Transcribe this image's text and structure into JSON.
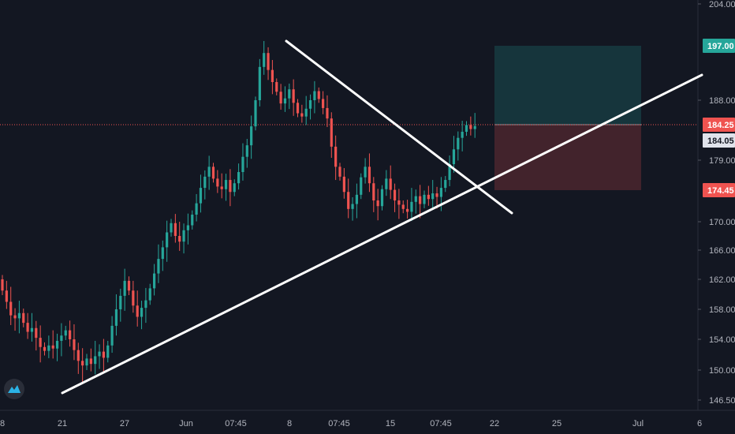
{
  "chart_data": {
    "type": "candlestick",
    "title": "",
    "colors": {
      "background": "#131722",
      "up": "#26a69a",
      "down": "#ef5350",
      "trendline": "#ffffff",
      "price_line": "#ef5350",
      "target_zone": "rgba(38,166,154,0.22)",
      "stop_zone": "rgba(239,83,80,0.22)",
      "axis_text": "#b2b5be"
    },
    "y_axis": {
      "position": "right",
      "range": [
        145,
        205
      ],
      "tick_labels": [
        "204.00",
        "188.00",
        "179.00",
        "170.00",
        "166.00",
        "162.00",
        "158.00",
        "154.00",
        "150.00",
        "146.50"
      ],
      "tick_values": [
        204,
        188,
        179,
        170,
        166,
        162,
        158,
        154,
        150,
        146.5
      ]
    },
    "x_axis": {
      "tick_labels": [
        "8",
        "21",
        "27",
        "Jun",
        "07:45",
        "8",
        "07:45",
        "15",
        "07:45",
        "22",
        "25",
        "Jul",
        "6"
      ]
    },
    "price_tags": [
      {
        "label": "197.00",
        "value": 197.0,
        "bg": "#26a69a",
        "fg": "#ffffff"
      },
      {
        "label": "184.25",
        "value": 184.25,
        "bg": "#ef5350",
        "fg": "#ffffff"
      },
      {
        "label": "184.05",
        "value": 184.05,
        "bg": "#e0e3eb",
        "fg": "#131722"
      },
      {
        "label": "174.45",
        "value": 174.45,
        "bg": "#ef5350",
        "fg": "#ffffff"
      }
    ],
    "current_price": 184.25,
    "position": {
      "entry": 184.25,
      "target": 197.0,
      "stop": 174.45
    },
    "ohlc_close_series": [
      160.5,
      159.0,
      157.2,
      156.8,
      157.5,
      156.2,
      155.0,
      155.5,
      154.2,
      153.0,
      152.5,
      153.2,
      152.8,
      153.8,
      154.5,
      155.2,
      154.0,
      152.6,
      151.2,
      150.6,
      151.5,
      150.8,
      151.8,
      152.4,
      151.6,
      153.2,
      155.8,
      158.0,
      159.8,
      161.8,
      160.5,
      158.5,
      157.0,
      158.2,
      159.2,
      160.8,
      162.8,
      164.8,
      166.4,
      168.5,
      169.8,
      168.0,
      167.2,
      168.8,
      169.5,
      171.0,
      172.6,
      174.8,
      176.5,
      178.0,
      176.2,
      175.0,
      174.6,
      176.0,
      174.2,
      175.5,
      177.2,
      179.5,
      181.2,
      184.0,
      188.0,
      193.5,
      195.8,
      193.0,
      191.0,
      189.4,
      187.5,
      188.3,
      189.8,
      187.6,
      186.0,
      185.5,
      186.7,
      188.0,
      189.5,
      188.2,
      186.8,
      185.2,
      181.0,
      178.0,
      176.5,
      174.2,
      171.8,
      172.5,
      173.8,
      176.4,
      178.0,
      175.5,
      173.0,
      172.2,
      174.6,
      176.2,
      174.5,
      173.0,
      172.4,
      171.8,
      171.4,
      172.8,
      173.6,
      172.5,
      173.8,
      173.2,
      174.0,
      173.5,
      174.8,
      176.0,
      178.4,
      180.6,
      182.3,
      183.2,
      184.2,
      183.6,
      184.05
    ]
  }
}
